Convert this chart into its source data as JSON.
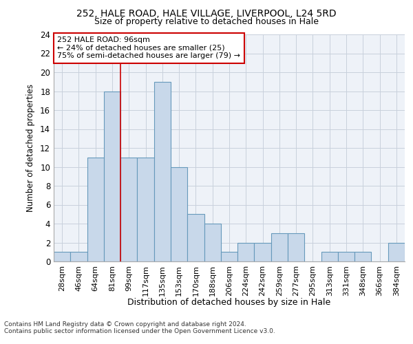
{
  "title1": "252, HALE ROAD, HALE VILLAGE, LIVERPOOL, L24 5RD",
  "title2": "Size of property relative to detached houses in Hale",
  "xlabel": "Distribution of detached houses by size in Hale",
  "ylabel": "Number of detached properties",
  "categories": [
    "28sqm",
    "46sqm",
    "64sqm",
    "81sqm",
    "99sqm",
    "117sqm",
    "135sqm",
    "153sqm",
    "170sqm",
    "188sqm",
    "206sqm",
    "224sqm",
    "242sqm",
    "259sqm",
    "277sqm",
    "295sqm",
    "313sqm",
    "331sqm",
    "348sqm",
    "366sqm",
    "384sqm"
  ],
  "values": [
    1,
    1,
    11,
    18,
    11,
    11,
    19,
    10,
    5,
    4,
    1,
    2,
    2,
    3,
    3,
    0,
    1,
    1,
    1,
    0,
    2
  ],
  "bar_color": "#c8d8ea",
  "bar_edge_color": "#6699bb",
  "red_line_x": 3.5,
  "annotation_text": "252 HALE ROAD: 96sqm\n← 24% of detached houses are smaller (25)\n75% of semi-detached houses are larger (79) →",
  "annotation_box_color": "#ffffff",
  "annotation_box_edge": "#cc0000",
  "ylim": [
    0,
    24
  ],
  "yticks": [
    0,
    2,
    4,
    6,
    8,
    10,
    12,
    14,
    16,
    18,
    20,
    22,
    24
  ],
  "background_color": "#eef2f8",
  "grid_color": "#c8d0dc",
  "footer1": "Contains HM Land Registry data © Crown copyright and database right 2024.",
  "footer2": "Contains public sector information licensed under the Open Government Licence v3.0."
}
